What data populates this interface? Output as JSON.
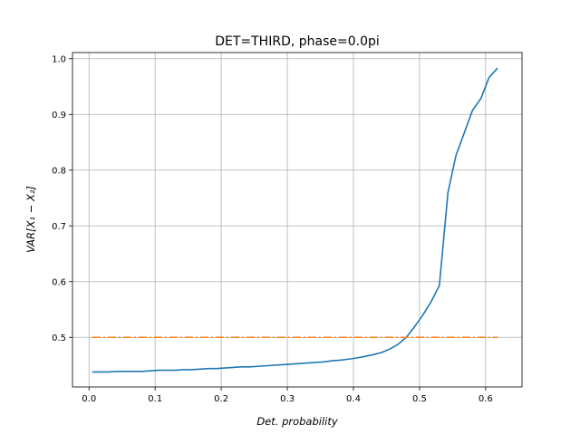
{
  "chart_data": {
    "type": "line",
    "title": "DET=THIRD, phase=0.0pi",
    "xlabel": "Det. probability",
    "ylabel": "VAR[X₁ − X₂]",
    "xlim": [
      -0.025,
      0.655
    ],
    "ylim": [
      0.411,
      1.011
    ],
    "grid": true,
    "xticks": [
      0.0,
      0.1,
      0.2,
      0.3,
      0.4,
      0.5,
      0.6
    ],
    "xtick_labels": [
      "0.0",
      "0.1",
      "0.2",
      "0.3",
      "0.4",
      "0.5",
      "0.6"
    ],
    "yticks": [
      0.5,
      0.6,
      0.7,
      0.8,
      0.9,
      1.0
    ],
    "ytick_labels": [
      "0.5",
      "0.6",
      "0.7",
      "0.8",
      "0.9",
      "1.0"
    ],
    "series": [
      {
        "color": "#1f77b4",
        "style": "solid",
        "x": [
          0.005,
          0.018,
          0.03,
          0.043,
          0.055,
          0.068,
          0.08,
          0.093,
          0.105,
          0.118,
          0.13,
          0.143,
          0.155,
          0.168,
          0.18,
          0.193,
          0.205,
          0.218,
          0.23,
          0.243,
          0.255,
          0.268,
          0.28,
          0.293,
          0.305,
          0.318,
          0.33,
          0.343,
          0.355,
          0.368,
          0.38,
          0.393,
          0.405,
          0.418,
          0.43,
          0.443,
          0.455,
          0.468,
          0.48,
          0.493,
          0.505,
          0.518,
          0.53,
          0.543,
          0.555,
          0.568,
          0.58,
          0.593,
          0.605,
          0.618
        ],
        "y": [
          0.438,
          0.438,
          0.438,
          0.439,
          0.439,
          0.439,
          0.439,
          0.44,
          0.441,
          0.441,
          0.441,
          0.442,
          0.442,
          0.443,
          0.444,
          0.444,
          0.445,
          0.446,
          0.447,
          0.447,
          0.448,
          0.449,
          0.45,
          0.451,
          0.452,
          0.453,
          0.454,
          0.455,
          0.456,
          0.458,
          0.459,
          0.461,
          0.463,
          0.466,
          0.469,
          0.473,
          0.479,
          0.488,
          0.5,
          0.52,
          0.54,
          0.565,
          0.593,
          0.76,
          0.826,
          0.868,
          0.907,
          0.929,
          0.966,
          0.983
        ]
      },
      {
        "color": "#ff7f0e",
        "style": "dashdot",
        "x": [
          0.005,
          0.618
        ],
        "y": [
          0.5,
          0.5
        ]
      }
    ]
  }
}
